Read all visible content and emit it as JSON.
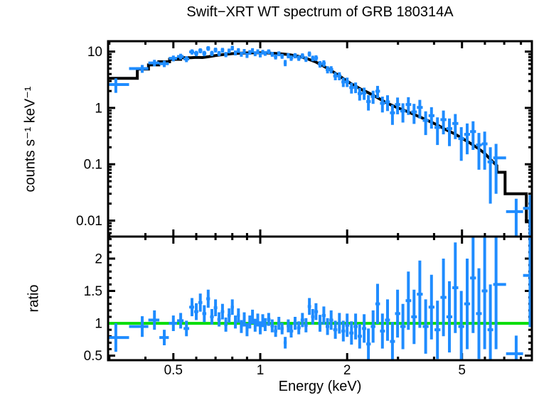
{
  "chart_data": {
    "type": "scatter",
    "title": "Swift−XRT WT spectrum of GRB 180314A",
    "xlabel": "Energy (keV)",
    "xscale": "log",
    "xlim": [
      0.297,
      8.73
    ],
    "x_ticks": {
      "major": [
        [
          0.5,
          "0.5"
        ],
        [
          1,
          "1"
        ],
        [
          2,
          "2"
        ],
        [
          5,
          "5"
        ]
      ],
      "minor": [
        0.3,
        0.4,
        0.6,
        0.7,
        0.8,
        0.9,
        3,
        4,
        6,
        7,
        8
      ]
    },
    "colors": {
      "data": "#1f8cff",
      "model": "#000000",
      "unity_line": "#00dd00",
      "frame": "#000000",
      "background": "#ffffff"
    },
    "panels": [
      {
        "name": "spectrum",
        "ylabel": "counts s⁻¹ keV⁻¹",
        "yscale": "log",
        "ylim": [
          0.0052,
          15.3
        ],
        "y_ticks": {
          "major": [
            [
              10,
              "10"
            ],
            [
              1,
              "1"
            ],
            [
              0.1,
              "0.1"
            ],
            [
              0.01,
              "0.01"
            ]
          ],
          "minor_mantissas": [
            2,
            3,
            4,
            5,
            6,
            7,
            8,
            9
          ],
          "minor_decades": [
            0.001,
            0.01,
            0.1,
            1,
            10
          ]
        },
        "model": {
          "label": "fitted model (stepped black line)",
          "points": [
            [
              0.297,
              3.35
            ],
            [
              0.375,
              3.35
            ],
            [
              0.375,
              4.9
            ],
            [
              0.41,
              4.9
            ],
            [
              0.41,
              5.8
            ],
            [
              0.445,
              5.8
            ],
            [
              0.445,
              6.6
            ],
            [
              0.485,
              6.6
            ],
            [
              0.485,
              7.3
            ],
            [
              0.53,
              7.3
            ],
            [
              0.53,
              7.8
            ],
            [
              0.575,
              7.8
            ],
            [
              0.6,
              7.9
            ],
            [
              0.63,
              7.85
            ],
            [
              0.66,
              8.1
            ],
            [
              0.7,
              8.5
            ],
            [
              0.75,
              8.9
            ],
            [
              0.8,
              9.2
            ],
            [
              0.86,
              9.4
            ],
            [
              0.93,
              9.5
            ],
            [
              1.0,
              9.5
            ],
            [
              1.08,
              9.4
            ],
            [
              1.16,
              9.2
            ],
            [
              1.25,
              8.9
            ],
            [
              1.35,
              8.3
            ],
            [
              1.45,
              7.5
            ],
            [
              1.55,
              6.6
            ],
            [
              1.65,
              5.6
            ],
            [
              1.75,
              4.7
            ],
            [
              1.85,
              3.9
            ],
            [
              1.95,
              3.25
            ],
            [
              2.05,
              2.75
            ],
            [
              2.15,
              2.4
            ],
            [
              2.25,
              2.1
            ],
            [
              2.35,
              1.9
            ],
            [
              2.45,
              1.7
            ],
            [
              2.55,
              1.52
            ],
            [
              2.7,
              1.28
            ],
            [
              2.85,
              1.12
            ],
            [
              3.0,
              1.0
            ],
            [
              3.2,
              0.88
            ],
            [
              3.4,
              0.77
            ],
            [
              3.6,
              0.68
            ],
            [
              3.85,
              0.58
            ],
            [
              4.1,
              0.5
            ],
            [
              4.4,
              0.41
            ],
            [
              4.7,
              0.35
            ],
            [
              5.0,
              0.29
            ],
            [
              5.35,
              0.235
            ],
            [
              5.7,
              0.19
            ],
            [
              6.0,
              0.155
            ],
            [
              6.2,
              0.13
            ],
            [
              6.4,
              0.11
            ],
            [
              6.6,
              0.095
            ],
            [
              6.6,
              0.072
            ],
            [
              7.05,
              0.072
            ],
            [
              7.05,
              0.03
            ],
            [
              8.35,
              0.03
            ],
            [
              8.35,
              0.0095
            ],
            [
              8.73,
              0.0095
            ]
          ]
        },
        "points_desc": "each point: [energy_keV, counts_per_s_per_keV, y_error]",
        "points": [
          [
            0.316,
            2.6,
            0.75
          ],
          [
            0.39,
            5.0,
            0.8
          ],
          [
            0.43,
            6.3,
            0.85
          ],
          [
            0.465,
            6.1,
            0.8
          ],
          [
            0.5,
            7.6,
            0.9
          ],
          [
            0.53,
            8.2,
            0.95
          ],
          [
            0.555,
            7.4,
            0.9
          ],
          [
            0.58,
            9.9,
            1.05
          ],
          [
            0.6,
            9.3,
            1.0
          ],
          [
            0.62,
            10.4,
            1.05
          ],
          [
            0.64,
            9.3,
            1.0
          ],
          [
            0.66,
            11.4,
            1.1
          ],
          [
            0.68,
            9.3,
            1.0
          ],
          [
            0.7,
            10.7,
            1.05
          ],
          [
            0.72,
            9.3,
            0.95
          ],
          [
            0.74,
            10.6,
            1.05
          ],
          [
            0.76,
            8.9,
            0.95
          ],
          [
            0.78,
            10.3,
            1.0
          ],
          [
            0.8,
            11.6,
            1.1
          ],
          [
            0.82,
            9.5,
            0.95
          ],
          [
            0.84,
            10.5,
            1.0
          ],
          [
            0.86,
            9.0,
            0.9
          ],
          [
            0.88,
            10.1,
            1.0
          ],
          [
            0.9,
            8.6,
            0.9
          ],
          [
            0.92,
            9.7,
            0.95
          ],
          [
            0.94,
            10.5,
            1.0
          ],
          [
            0.96,
            9.2,
            0.9
          ],
          [
            0.98,
            10.0,
            0.95
          ],
          [
            1.0,
            8.8,
            0.9
          ],
          [
            1.02,
            9.8,
            0.95
          ],
          [
            1.04,
            9.3,
            0.9
          ],
          [
            1.07,
            10.0,
            0.95
          ],
          [
            1.1,
            9.0,
            0.9
          ],
          [
            1.13,
            8.1,
            0.85
          ],
          [
            1.16,
            9.2,
            0.9
          ],
          [
            1.19,
            8.3,
            0.85
          ],
          [
            1.22,
            6.3,
            0.8
          ],
          [
            1.25,
            8.5,
            0.9
          ],
          [
            1.28,
            7.7,
            0.85
          ],
          [
            1.32,
            8.5,
            0.9
          ],
          [
            1.36,
            7.7,
            0.85
          ],
          [
            1.4,
            8.4,
            0.9
          ],
          [
            1.44,
            7.4,
            0.85
          ],
          [
            1.48,
            9.1,
            0.95
          ],
          [
            1.52,
            7.6,
            0.85
          ],
          [
            1.56,
            7.7,
            0.9
          ],
          [
            1.61,
            6.0,
            0.8
          ],
          [
            1.66,
            6.2,
            0.8
          ],
          [
            1.71,
            4.8,
            0.7
          ],
          [
            1.76,
            4.8,
            0.7
          ],
          [
            1.82,
            3.7,
            0.6
          ],
          [
            1.88,
            3.7,
            0.6
          ],
          [
            1.94,
            2.9,
            0.55
          ],
          [
            2.0,
            2.9,
            0.55
          ],
          [
            2.07,
            2.3,
            0.5
          ],
          [
            2.14,
            2.33,
            0.5
          ],
          [
            2.21,
            1.8,
            0.45
          ],
          [
            2.29,
            1.84,
            0.45
          ],
          [
            2.37,
            1.3,
            0.4
          ],
          [
            2.46,
            1.6,
            0.42
          ],
          [
            2.55,
            1.98,
            0.48
          ],
          [
            2.65,
            1.21,
            0.38
          ],
          [
            2.76,
            1.28,
            0.4
          ],
          [
            2.87,
            0.82,
            0.32
          ],
          [
            2.99,
            1.15,
            0.38
          ],
          [
            3.12,
            0.88,
            0.33
          ],
          [
            3.26,
            1.15,
            0.4
          ],
          [
            3.41,
            0.85,
            0.33
          ],
          [
            3.57,
            1.02,
            0.37
          ],
          [
            3.74,
            0.6,
            0.27
          ],
          [
            3.92,
            0.73,
            0.3
          ],
          [
            4.11,
            0.45,
            0.23
          ],
          [
            4.31,
            0.62,
            0.28
          ],
          [
            4.52,
            0.43,
            0.22
          ],
          [
            4.74,
            0.53,
            0.25
          ],
          [
            4.97,
            0.285,
            0.17
          ],
          [
            5.21,
            0.34,
            0.19
          ],
          [
            5.46,
            0.38,
            0.2
          ],
          [
            5.72,
            0.22,
            0.14
          ],
          [
            5.99,
            0.23,
            0.15
          ],
          [
            6.27,
            0.11,
            0.09
          ],
          [
            6.56,
            0.13,
            0.1
          ],
          [
            7.7,
            0.0144,
            0.01
          ],
          [
            8.6,
            0.0165,
            0.012
          ]
        ]
      },
      {
        "name": "ratio",
        "ylabel": "ratio",
        "yscale": "linear",
        "ylim": [
          0.43,
          2.34
        ],
        "y_ticks": {
          "major": [
            [
              0.5,
              "0.5"
            ],
            [
              1,
              "1"
            ],
            [
              1.5,
              "1.5"
            ],
            [
              2,
              "2"
            ]
          ],
          "minor_step": 0.1
        },
        "unity_line": 1.0,
        "points_desc": "each point: [energy_keV, ratio_data_over_model, y_error]",
        "points": [
          [
            0.316,
            0.78,
            0.22
          ],
          [
            0.39,
            0.95,
            0.16
          ],
          [
            0.43,
            1.05,
            0.15
          ],
          [
            0.465,
            0.78,
            0.12
          ],
          [
            0.5,
            1.0,
            0.12
          ],
          [
            0.53,
            1.04,
            0.12
          ],
          [
            0.555,
            0.92,
            0.12
          ],
          [
            0.58,
            1.25,
            0.14
          ],
          [
            0.6,
            1.18,
            0.13
          ],
          [
            0.62,
            1.32,
            0.14
          ],
          [
            0.64,
            1.15,
            0.13
          ],
          [
            0.66,
            1.38,
            0.14
          ],
          [
            0.68,
            1.1,
            0.12
          ],
          [
            0.7,
            1.24,
            0.13
          ],
          [
            0.72,
            1.06,
            0.11
          ],
          [
            0.74,
            1.18,
            0.12
          ],
          [
            0.76,
            0.98,
            0.11
          ],
          [
            0.78,
            1.12,
            0.11
          ],
          [
            0.8,
            1.25,
            0.12
          ],
          [
            0.82,
            1.02,
            0.1
          ],
          [
            0.84,
            1.12,
            0.11
          ],
          [
            0.86,
            0.95,
            0.1
          ],
          [
            0.88,
            1.06,
            0.11
          ],
          [
            0.9,
            0.9,
            0.1
          ],
          [
            0.92,
            1.02,
            0.1
          ],
          [
            0.94,
            1.1,
            0.11
          ],
          [
            0.96,
            0.97,
            0.1
          ],
          [
            0.98,
            1.05,
            0.1
          ],
          [
            1.0,
            0.93,
            0.1
          ],
          [
            1.02,
            1.04,
            0.1
          ],
          [
            1.04,
            0.98,
            0.1
          ],
          [
            1.07,
            1.06,
            0.1
          ],
          [
            1.1,
            0.96,
            0.1
          ],
          [
            1.13,
            0.88,
            0.09
          ],
          [
            1.16,
            1.0,
            0.1
          ],
          [
            1.19,
            0.92,
            0.09
          ],
          [
            1.22,
            0.7,
            0.09
          ],
          [
            1.25,
            0.96,
            0.1
          ],
          [
            1.28,
            0.88,
            0.1
          ],
          [
            1.32,
            1.0,
            0.1
          ],
          [
            1.36,
            0.93,
            0.1
          ],
          [
            1.4,
            1.05,
            0.11
          ],
          [
            1.44,
            0.97,
            0.11
          ],
          [
            1.48,
            1.26,
            0.13
          ],
          [
            1.52,
            1.1,
            0.12
          ],
          [
            1.56,
            1.18,
            0.13
          ],
          [
            1.61,
            1.0,
            0.13
          ],
          [
            1.66,
            1.12,
            0.14
          ],
          [
            1.71,
            0.95,
            0.13
          ],
          [
            1.76,
            1.05,
            0.15
          ],
          [
            1.82,
            0.9,
            0.14
          ],
          [
            1.88,
            1.0,
            0.16
          ],
          [
            1.94,
            0.88,
            0.16
          ],
          [
            2.0,
            0.97,
            0.18
          ],
          [
            2.07,
            0.85,
            0.18
          ],
          [
            2.14,
            0.95,
            0.2
          ],
          [
            2.21,
            0.8,
            0.19
          ],
          [
            2.29,
            0.92,
            0.22
          ],
          [
            2.37,
            0.68,
            0.24
          ],
          [
            2.46,
            0.95,
            0.25
          ],
          [
            2.55,
            1.3,
            0.31
          ],
          [
            2.65,
            0.88,
            0.27
          ],
          [
            2.76,
            1.05,
            0.32
          ],
          [
            2.87,
            0.72,
            0.3
          ],
          [
            2.99,
            1.15,
            0.37
          ],
          [
            3.12,
            0.95,
            0.35
          ],
          [
            3.26,
            1.35,
            0.45
          ],
          [
            3.41,
            1.1,
            0.42
          ],
          [
            3.57,
            1.45,
            0.52
          ],
          [
            3.74,
            0.95,
            0.42
          ],
          [
            3.92,
            1.25,
            0.5
          ],
          [
            4.11,
            0.9,
            0.45
          ],
          [
            4.31,
            1.4,
            0.6
          ],
          [
            4.52,
            1.1,
            0.55
          ],
          [
            4.74,
            1.55,
            0.7
          ],
          [
            4.97,
            0.95,
            0.55
          ],
          [
            5.21,
            1.3,
            0.7
          ],
          [
            5.46,
            1.7,
            0.85
          ],
          [
            5.72,
            1.15,
            0.7
          ],
          [
            5.99,
            1.5,
            0.9
          ],
          [
            6.27,
            0.9,
            0.7
          ],
          [
            6.56,
            1.6,
            1.0
          ],
          [
            7.7,
            0.53,
            0.28
          ],
          [
            8.6,
            1.74,
            0.8
          ]
        ]
      }
    ]
  }
}
